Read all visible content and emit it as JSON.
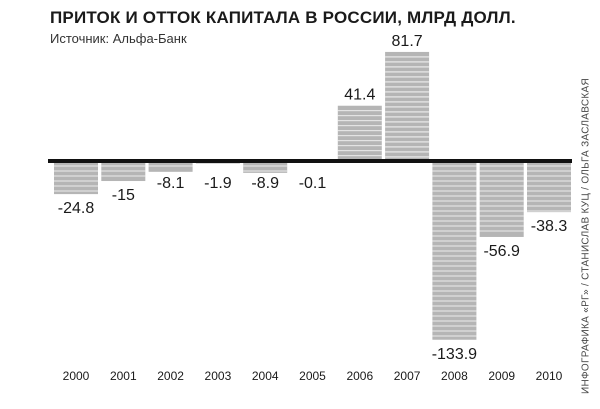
{
  "title": "ПРИТОК И ОТТОК КАПИТАЛА В РОССИИ, МЛРД ДОЛЛ.",
  "subtitle": "Источник: Альфа-Банк",
  "credit": "ИНФОГРАФИКА «РГ» / СТАНИСЛАВ КУЦ / ОЛЬГА ЗАСЛАВСКАЯ",
  "colors": {
    "bar": "#b5b5b5",
    "stripe": "#ffffff",
    "axis": "#111111",
    "text": "#1a1a1a"
  },
  "chart_data": {
    "type": "bar",
    "title": "ПРИТОК И ОТТОК КАПИТАЛА В РОССИИ, МЛРД ДОЛЛ.",
    "subtitle": "Источник: Альфа-Банк",
    "xlabel": "",
    "ylabel": "",
    "grid": false,
    "categories": [
      "2000",
      "2001",
      "2002",
      "2003",
      "2004",
      "2005",
      "2006",
      "2007",
      "2008",
      "2009",
      "2010"
    ],
    "values": [
      -24.8,
      -15,
      -8.1,
      -1.9,
      -8.9,
      -0.1,
      41.4,
      81.7,
      -133.9,
      -56.9,
      -38.3
    ],
    "value_labels": [
      "-24.8",
      "-15",
      "-8.1",
      "-1.9",
      "-8.9",
      "-0.1",
      "41.4",
      "81.7",
      "-133.9",
      "-56.9",
      "-38.3"
    ]
  }
}
